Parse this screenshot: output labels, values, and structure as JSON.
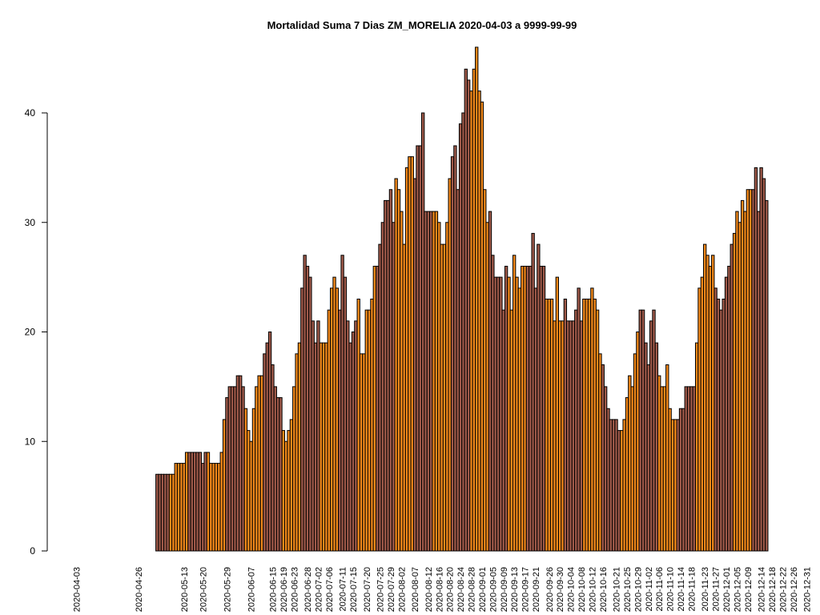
{
  "chart_data": {
    "type": "bar",
    "title": "Mortalidad Suma 7 Dias ZM_MORELIA 2020-04-03 a 9999-99-99",
    "xlabel": "",
    "ylabel": "",
    "ylim": [
      0,
      47
    ],
    "yticks": [
      0,
      10,
      20,
      30,
      40
    ],
    "x_start_date": "2020-04-03",
    "x_end_date": "2021-01-01",
    "colors": {
      "light": "#f58a1a",
      "dark": "#a05a4a",
      "outline": "#000000"
    },
    "xtick_labels": [
      "2020-04-03",
      "2020-04-26",
      "2020-05-13",
      "2020-05-20",
      "2020-05-29",
      "2020-06-07",
      "2020-06-15",
      "2020-06-19",
      "2020-06-23",
      "2020-06-28",
      "2020-07-02",
      "2020-07-06",
      "2020-07-11",
      "2020-07-15",
      "2020-07-20",
      "2020-07-25",
      "2020-07-29",
      "2020-08-02",
      "2020-08-07",
      "2020-08-12",
      "2020-08-16",
      "2020-08-20",
      "2020-08-24",
      "2020-08-28",
      "2020-09-01",
      "2020-09-05",
      "2020-09-09",
      "2020-09-13",
      "2020-09-17",
      "2020-09-21",
      "2020-09-26",
      "2020-09-30",
      "2020-10-04",
      "2020-10-08",
      "2020-10-12",
      "2020-10-16",
      "2020-10-21",
      "2020-10-25",
      "2020-10-29",
      "2020-11-02",
      "2020-11-06",
      "2020-11-10",
      "2020-11-14",
      "2020-11-18",
      "2020-11-23",
      "2020-11-27",
      "2020-12-01",
      "2020-12-05",
      "2020-12-09",
      "2020-12-14",
      "2020-12-18",
      "2020-12-22",
      "2020-12-26",
      "2020-12-31"
    ],
    "values": [
      0,
      0,
      0,
      0,
      0,
      0,
      0,
      0,
      0,
      0,
      0,
      0,
      0,
      0,
      0,
      0,
      0,
      0,
      0,
      0,
      0,
      0,
      0,
      0,
      0,
      0,
      0,
      0,
      0,
      0,
      7,
      7,
      7,
      7,
      7,
      7,
      7,
      8,
      8,
      8,
      8,
      9,
      9,
      9,
      9,
      9,
      9,
      8,
      9,
      9,
      8,
      8,
      8,
      8,
      9,
      12,
      14,
      15,
      15,
      15,
      16,
      16,
      15,
      13,
      11,
      10,
      13,
      15,
      16,
      16,
      18,
      19,
      20,
      17,
      15,
      14,
      14,
      11,
      10,
      11,
      12,
      15,
      18,
      19,
      24,
      27,
      26,
      25,
      21,
      19,
      21,
      19,
      19,
      19,
      22,
      24,
      25,
      24,
      22,
      27,
      25,
      21,
      19,
      20,
      21,
      23,
      18,
      18,
      22,
      22,
      23,
      26,
      26,
      28,
      30,
      32,
      32,
      33,
      30,
      34,
      33,
      31,
      28,
      35,
      36,
      36,
      34,
      37,
      37,
      40,
      31,
      31,
      31,
      31,
      31,
      30,
      28,
      28,
      30,
      34,
      36,
      37,
      33,
      39,
      40,
      44,
      43,
      42,
      44,
      46,
      42,
      41,
      33,
      30,
      31,
      27,
      25,
      25,
      25,
      22,
      26,
      25,
      22,
      27,
      25,
      24,
      26,
      26,
      26,
      26,
      29,
      24,
      28,
      26,
      26,
      23,
      23,
      23,
      21,
      25,
      21,
      21,
      23,
      21,
      21,
      21,
      22,
      24,
      21,
      23,
      23,
      23,
      24,
      23,
      22,
      18,
      17,
      15,
      13,
      12,
      12,
      12,
      11,
      11,
      12,
      14,
      16,
      15,
      18,
      20,
      22,
      22,
      19,
      17,
      21,
      22,
      19,
      16,
      15,
      15,
      17,
      13,
      12,
      12,
      12,
      13,
      13,
      15,
      15,
      15,
      15,
      19,
      24,
      25,
      28,
      27,
      26,
      27,
      24,
      23,
      22,
      23,
      25,
      26,
      28,
      29,
      31,
      30,
      32,
      31,
      33,
      33,
      33,
      35,
      31,
      35,
      34,
      32
    ]
  }
}
